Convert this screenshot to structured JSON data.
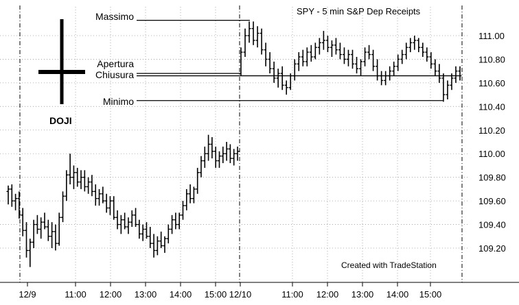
{
  "chart_data": {
    "type": "bar",
    "subtype": "ohlc",
    "title": "SPY - 5 min  S&P Dep Receipts",
    "footer": "Created with TradeStation",
    "y_axis": {
      "ticks": [
        "111.00",
        "110.80",
        "110.60",
        "110.40",
        "110.20",
        "110.00",
        "109.80",
        "109.60",
        "109.40",
        "109.20"
      ],
      "range": [
        109.0,
        111.22
      ],
      "side": "right"
    },
    "x_axis": {
      "labels": [
        "12/9",
        "11:00",
        "12:00",
        "13:00",
        "14:00",
        "15:00",
        "12/10",
        "11:00",
        "12:00",
        "13:00",
        "14:00",
        "15:00"
      ]
    },
    "grid": true,
    "series": [
      {
        "session": "12/9",
        "bars": [
          [
            109.68,
            109.73,
            109.57,
            109.7
          ],
          [
            109.7,
            109.74,
            109.55,
            109.6
          ],
          [
            109.6,
            109.66,
            109.52,
            109.62
          ],
          [
            109.62,
            109.68,
            109.45,
            109.48
          ],
          [
            109.48,
            109.54,
            109.3,
            109.35
          ],
          [
            109.35,
            109.42,
            109.12,
            109.18
          ],
          [
            109.18,
            109.28,
            109.04,
            109.25
          ],
          [
            109.25,
            109.44,
            109.2,
            109.4
          ],
          [
            109.4,
            109.48,
            109.32,
            109.36
          ],
          [
            109.36,
            109.46,
            109.28,
            109.42
          ],
          [
            109.42,
            109.5,
            109.36,
            109.38
          ],
          [
            109.38,
            109.44,
            109.26,
            109.3
          ],
          [
            109.3,
            109.42,
            109.2,
            109.34
          ],
          [
            109.34,
            109.4,
            109.18,
            109.24
          ],
          [
            109.24,
            109.5,
            109.22,
            109.46
          ],
          [
            109.46,
            109.68,
            109.42,
            109.64
          ],
          [
            109.64,
            109.86,
            109.6,
            109.82
          ],
          [
            109.82,
            110.0,
            109.74,
            109.8
          ],
          [
            109.8,
            109.9,
            109.7,
            109.84
          ],
          [
            109.84,
            109.88,
            109.72,
            109.76
          ],
          [
            109.76,
            109.86,
            109.7,
            109.8
          ],
          [
            109.8,
            109.86,
            109.68,
            109.72
          ],
          [
            109.72,
            109.8,
            109.66,
            109.76
          ],
          [
            109.76,
            109.82,
            109.64,
            109.68
          ],
          [
            109.68,
            109.74,
            109.56,
            109.62
          ],
          [
            109.62,
            109.7,
            109.56,
            109.66
          ],
          [
            109.66,
            109.72,
            109.58,
            109.6
          ],
          [
            109.6,
            109.66,
            109.5,
            109.54
          ],
          [
            109.54,
            109.64,
            109.48,
            109.6
          ],
          [
            109.6,
            109.64,
            109.44,
            109.46
          ],
          [
            109.46,
            109.52,
            109.36,
            109.4
          ],
          [
            109.4,
            109.48,
            109.32,
            109.44
          ],
          [
            109.44,
            109.5,
            109.36,
            109.38
          ],
          [
            109.38,
            109.46,
            109.32,
            109.42
          ],
          [
            109.42,
            109.52,
            109.38,
            109.48
          ],
          [
            109.48,
            109.54,
            109.38,
            109.4
          ],
          [
            109.4,
            109.44,
            109.28,
            109.32
          ],
          [
            109.32,
            109.4,
            109.26,
            109.36
          ],
          [
            109.36,
            109.42,
            109.28,
            109.3
          ],
          [
            109.3,
            109.38,
            109.2,
            109.24
          ],
          [
            109.24,
            109.32,
            109.12,
            109.18
          ],
          [
            109.18,
            109.3,
            109.14,
            109.26
          ],
          [
            109.26,
            109.34,
            109.2,
            109.22
          ],
          [
            109.22,
            109.3,
            109.16,
            109.28
          ],
          [
            109.28,
            109.4,
            109.24,
            109.36
          ],
          [
            109.36,
            109.48,
            109.32,
            109.44
          ],
          [
            109.44,
            109.5,
            109.36,
            109.4
          ],
          [
            109.4,
            109.5,
            109.36,
            109.48
          ],
          [
            109.48,
            109.6,
            109.44,
            109.56
          ],
          [
            109.56,
            109.7,
            109.52,
            109.66
          ],
          [
            109.66,
            109.74,
            109.58,
            109.62
          ],
          [
            109.62,
            109.72,
            109.58,
            109.7
          ],
          [
            109.7,
            109.88,
            109.66,
            109.84
          ],
          [
            109.84,
            109.98,
            109.8,
            109.94
          ],
          [
            109.94,
            110.06,
            109.88,
            110.0
          ],
          [
            110.0,
            110.16,
            109.94,
            110.08
          ],
          [
            110.08,
            110.14,
            109.96,
            110.02
          ],
          [
            110.02,
            110.06,
            109.88,
            109.94
          ],
          [
            109.94,
            110.02,
            109.88,
            109.98
          ],
          [
            109.98,
            110.06,
            109.92,
            110.0
          ],
          [
            110.0,
            110.1,
            109.94,
            110.04
          ],
          [
            110.04,
            110.08,
            109.92,
            109.96
          ],
          [
            109.96,
            110.04,
            109.9,
            110.0
          ],
          [
            110.0,
            110.06,
            109.94,
            110.02
          ]
        ]
      },
      {
        "session": "12/10",
        "bars": [
          [
            110.68,
            110.9,
            110.66,
            110.86
          ],
          [
            110.86,
            111.06,
            110.82,
            111.0
          ],
          [
            111.0,
            111.12,
            110.94,
            111.06
          ],
          [
            111.06,
            111.12,
            110.92,
            110.96
          ],
          [
            110.96,
            111.08,
            110.9,
            111.02
          ],
          [
            111.02,
            111.06,
            110.84,
            110.88
          ],
          [
            110.88,
            110.94,
            110.74,
            110.8
          ],
          [
            110.8,
            110.86,
            110.68,
            110.72
          ],
          [
            110.72,
            110.78,
            110.6,
            110.64
          ],
          [
            110.64,
            110.72,
            110.56,
            110.68
          ],
          [
            110.68,
            110.74,
            110.54,
            110.58
          ],
          [
            110.58,
            110.62,
            110.5,
            110.56
          ],
          [
            110.56,
            110.68,
            110.54,
            110.66
          ],
          [
            110.66,
            110.8,
            110.62,
            110.76
          ],
          [
            110.76,
            110.86,
            110.7,
            110.82
          ],
          [
            110.82,
            110.88,
            110.74,
            110.78
          ],
          [
            110.78,
            110.9,
            110.74,
            110.86
          ],
          [
            110.86,
            110.92,
            110.78,
            110.82
          ],
          [
            110.82,
            110.94,
            110.8,
            110.9
          ],
          [
            110.9,
            110.98,
            110.84,
            110.94
          ],
          [
            110.94,
            111.04,
            110.88,
            110.96
          ],
          [
            110.96,
            111.0,
            110.86,
            110.9
          ],
          [
            110.9,
            110.96,
            110.82,
            110.92
          ],
          [
            110.92,
            110.98,
            110.84,
            110.88
          ],
          [
            110.88,
            110.94,
            110.8,
            110.84
          ],
          [
            110.84,
            110.9,
            110.76,
            110.8
          ],
          [
            110.8,
            110.88,
            110.74,
            110.84
          ],
          [
            110.84,
            110.88,
            110.72,
            110.76
          ],
          [
            110.76,
            110.82,
            110.68,
            110.72
          ],
          [
            110.72,
            110.8,
            110.66,
            110.78
          ],
          [
            110.78,
            110.9,
            110.74,
            110.86
          ],
          [
            110.86,
            110.92,
            110.8,
            110.84
          ],
          [
            110.84,
            110.88,
            110.7,
            110.74
          ],
          [
            110.74,
            110.8,
            110.62,
            110.66
          ],
          [
            110.66,
            110.7,
            110.58,
            110.62
          ],
          [
            110.62,
            110.7,
            110.58,
            110.66
          ],
          [
            110.66,
            110.74,
            110.62,
            110.7
          ],
          [
            110.7,
            110.78,
            110.66,
            110.74
          ],
          [
            110.74,
            110.84,
            110.7,
            110.8
          ],
          [
            110.8,
            110.88,
            110.76,
            110.84
          ],
          [
            110.84,
            110.94,
            110.8,
            110.9
          ],
          [
            110.9,
            110.98,
            110.86,
            110.94
          ],
          [
            110.94,
            111.0,
            110.88,
            110.96
          ],
          [
            110.96,
            110.98,
            110.86,
            110.9
          ],
          [
            110.9,
            110.94,
            110.82,
            110.86
          ],
          [
            110.86,
            110.9,
            110.78,
            110.82
          ],
          [
            110.82,
            110.86,
            110.72,
            110.76
          ],
          [
            110.76,
            110.8,
            110.66,
            110.7
          ],
          [
            110.7,
            110.76,
            110.6,
            110.64
          ],
          [
            110.64,
            110.68,
            110.44,
            110.5
          ],
          [
            110.5,
            110.62,
            110.46,
            110.58
          ],
          [
            110.58,
            110.68,
            110.54,
            110.64
          ],
          [
            110.64,
            110.74,
            110.6,
            110.7
          ],
          [
            110.7,
            110.74,
            110.62,
            110.66
          ]
        ]
      }
    ],
    "annotations": [
      {
        "label": "Massimo",
        "value": 111.13
      },
      {
        "label": "Apertura",
        "value": 110.68
      },
      {
        "label": "Chiusura",
        "value": 110.66
      },
      {
        "label": "Minimo",
        "value": 110.45
      }
    ],
    "doji_label": "DOJI",
    "colors": {
      "bars": "#000000",
      "grid": "#9a9a9a",
      "ref_lines": "#000000"
    }
  }
}
